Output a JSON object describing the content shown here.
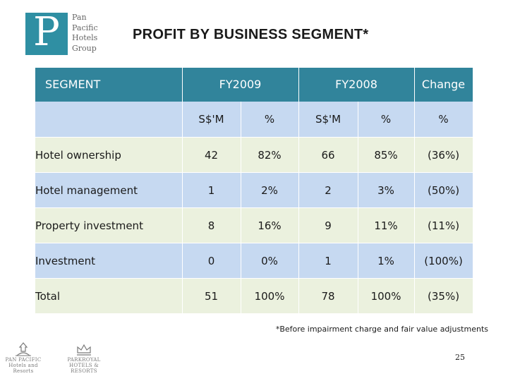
{
  "header": {
    "logo_letter": "P",
    "logo_words": [
      "Pan",
      "Pacific",
      "Hotels",
      "Group"
    ],
    "title": "PROFIT BY BUSINESS SEGMENT*"
  },
  "table": {
    "columns": [
      "SEGMENT",
      "FY2009",
      "FY2008",
      "Change"
    ],
    "subheaders": [
      "",
      "S$'M",
      "%",
      "S$'M",
      "%",
      "%"
    ],
    "rows": [
      {
        "segment": "Hotel ownership",
        "fy2009_sm": "42",
        "fy2009_pct": "82%",
        "fy2008_sm": "66",
        "fy2008_pct": "85%",
        "change_pct": "(36%)"
      },
      {
        "segment": "Hotel management",
        "fy2009_sm": "1",
        "fy2009_pct": "2%",
        "fy2008_sm": "2",
        "fy2008_pct": "3%",
        "change_pct": "(50%)"
      },
      {
        "segment": "Property investment",
        "fy2009_sm": "8",
        "fy2009_pct": "16%",
        "fy2008_sm": "9",
        "fy2008_pct": "11%",
        "change_pct": "(11%)"
      },
      {
        "segment": "Investment",
        "fy2009_sm": "0",
        "fy2009_pct": "0%",
        "fy2008_sm": "1",
        "fy2008_pct": "1%",
        "change_pct": "(100%)"
      },
      {
        "segment": "Total",
        "fy2009_sm": "51",
        "fy2009_pct": "100%",
        "fy2008_sm": "78",
        "fy2008_pct": "100%",
        "change_pct": "(35%)"
      }
    ]
  },
  "footnote": "*Before impairment charge and fair value adjustments",
  "page_number": "25",
  "footer_brands": [
    {
      "name": "PAN PACIFIC",
      "tagline": "Hotels and Resorts"
    },
    {
      "name": "PARKROYAL",
      "tagline": "HOTELS & RESORTS"
    }
  ],
  "colors": {
    "header_teal": "#31849b",
    "row_blue": "#c6d9f1",
    "row_green": "#ebf1de",
    "logo_teal": "#2f8fa3"
  }
}
